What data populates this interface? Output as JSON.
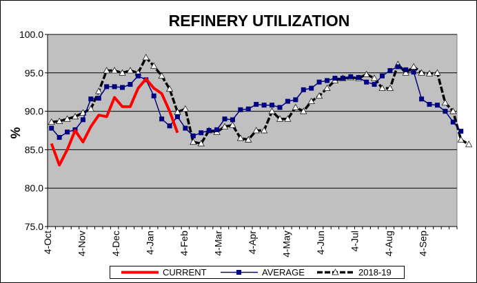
{
  "chart_data": {
    "type": "line",
    "title": "REFINERY UTILIZATION",
    "xlabel": "",
    "ylabel": "%",
    "ylim": [
      75.0,
      100.0
    ],
    "yticks": [
      "75.0",
      "80.0",
      "85.0",
      "90.0",
      "95.0",
      "100.0"
    ],
    "ytick_values": [
      75,
      80,
      85,
      90,
      95,
      100
    ],
    "xticks": [
      "4-Oct",
      "4-Nov",
      "4-Dec",
      "4-Jan",
      "4-Feb",
      "4-Mar",
      "4-Apr",
      "4-May",
      "4-Jun",
      "4-Jul",
      "4-Aug",
      "4-Sep"
    ],
    "week_count": 52,
    "grid": true,
    "legend_position": "bottom",
    "series": [
      {
        "name": "CURRENT",
        "color": "#ff0000",
        "marker": "none",
        "values": [
          85.8,
          83.0,
          85.0,
          87.5,
          86.0,
          88.0,
          89.5,
          89.3,
          91.8,
          90.6,
          90.6,
          93.0,
          94.2,
          93.0,
          92.3,
          90.0,
          87.2
        ]
      },
      {
        "name": "AVERAGE",
        "color": "#000080",
        "marker": "square",
        "values": [
          87.8,
          86.6,
          87.3,
          87.6,
          88.9,
          91.6,
          91.7,
          93.2,
          93.2,
          93.1,
          93.5,
          94.6,
          94.1,
          92.0,
          89.0,
          88.1,
          89.3,
          87.8,
          86.8,
          87.2,
          87.5,
          87.6,
          89.0,
          88.9,
          90.2,
          90.3,
          90.9,
          90.8,
          90.8,
          90.5,
          91.3,
          91.5,
          92.8,
          93.0,
          93.8,
          94.0,
          94.3,
          94.3,
          94.5,
          94.4,
          93.8,
          93.5,
          94.6,
          95.3,
          95.8,
          95.4,
          95.1,
          91.6,
          90.9,
          90.8,
          90.0,
          88.6,
          87.4
        ]
      },
      {
        "name": "2018-19",
        "color": "#000000",
        "marker": "triangle",
        "values": [
          88.6,
          88.7,
          89.0,
          89.3,
          89.8,
          90.3,
          92.6,
          95.3,
          95.3,
          95.0,
          95.3,
          95.0,
          97.0,
          95.9,
          94.6,
          92.9,
          89.9,
          90.3,
          86.0,
          85.8,
          87.5,
          87.3,
          88.0,
          88.2,
          86.5,
          86.3,
          87.5,
          87.5,
          90.0,
          89.0,
          89.0,
          90.5,
          90.0,
          91.3,
          92.0,
          93.0,
          94.0,
          94.3,
          94.4,
          94.3,
          94.8,
          94.3,
          93.0,
          93.0,
          96.1,
          95.0,
          95.8,
          95.0,
          94.9,
          95.0,
          91.1,
          90.0,
          86.3,
          85.7
        ]
      }
    ]
  }
}
